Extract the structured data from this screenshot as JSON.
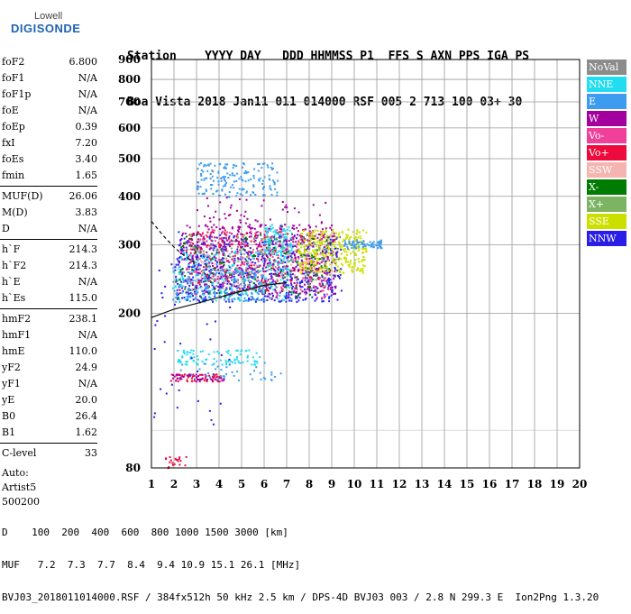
{
  "logo": {
    "line1": "Lowell",
    "line2": "DIGISONDE"
  },
  "header": {
    "labels": "Station    YYYY DAY   DDD HHMMSS P1  FFS S AXN PPS IGA PS",
    "values": "Boa Vista 2018 Jan11 011 014000 RSF 005 2 713 100 03+ 30"
  },
  "params": {
    "group1": [
      {
        "name": "foF2",
        "value": "6.800"
      },
      {
        "name": "foF1",
        "value": "N/A"
      },
      {
        "name": "foF1p",
        "value": "N/A"
      },
      {
        "name": "foE",
        "value": "N/A"
      },
      {
        "name": "foEp",
        "value": "0.39"
      },
      {
        "name": "fxI",
        "value": "7.20"
      },
      {
        "name": "foEs",
        "value": "3.40"
      },
      {
        "name": "fmin",
        "value": "1.65"
      }
    ],
    "group2": [
      {
        "name": "MUF(D)",
        "value": "26.06"
      },
      {
        "name": "M(D)",
        "value": "3.83"
      },
      {
        "name": "D",
        "value": "N/A"
      }
    ],
    "group3": [
      {
        "name": "h`F",
        "value": "214.3"
      },
      {
        "name": "h`F2",
        "value": "214.3"
      },
      {
        "name": "h`E",
        "value": "N/A"
      },
      {
        "name": "h`Es",
        "value": "115.0"
      }
    ],
    "group4": [
      {
        "name": "hmF2",
        "value": "238.1"
      },
      {
        "name": "hmF1",
        "value": "N/A"
      },
      {
        "name": "hmE",
        "value": "110.0"
      },
      {
        "name": "yF2",
        "value": "24.9"
      },
      {
        "name": "yF1",
        "value": "N/A"
      },
      {
        "name": "yE",
        "value": "20.0"
      },
      {
        "name": "B0",
        "value": "26.4"
      },
      {
        "name": "B1",
        "value": "1.62"
      }
    ],
    "group5": [
      {
        "name": "C-level",
        "value": "33"
      }
    ],
    "auto_lines": [
      "Auto:",
      "Artist5",
      "500200"
    ]
  },
  "legend": [
    {
      "label": "NoVal",
      "color": "#8c8c8c",
      "text_color": "#ffffff"
    },
    {
      "label": "NNE",
      "color": "#22dcf0",
      "text_color": "#ffffff"
    },
    {
      "label": "E",
      "color": "#3d9cf0",
      "text_color": "#ffffff"
    },
    {
      "label": "W",
      "color": "#a4009e",
      "text_color": "#ffffff"
    },
    {
      "label": "Vo-",
      "color": "#f0409a",
      "text_color": "#ffffff"
    },
    {
      "label": "Vo+",
      "color": "#ee0a3c",
      "text_color": "#ffffff"
    },
    {
      "label": "SSW",
      "color": "#f6b4b0",
      "text_color": "#ffffff"
    },
    {
      "label": "X-",
      "color": "#007c00",
      "text_color": "#ffffff"
    },
    {
      "label": "X+",
      "color": "#7cb464",
      "text_color": "#ffffff"
    },
    {
      "label": "SSE",
      "color": "#cce000",
      "text_color": "#ffffff"
    },
    {
      "label": "NNW",
      "color": "#2a1ee6",
      "text_color": "#ffffff"
    }
  ],
  "footer": {
    "line1": "D    100  200  400  600  800 1000 1500 3000 [km]",
    "line2": "MUF   7.2  7.3  7.7  8.4  9.4 10.9 15.1 26.1 [MHz]",
    "line3": "BVJ03_2018011014000.RSF / 384fx512h 50 kHz 2.5 km / DPS-4D BVJ03 003 / 2.8 N 299.3 E  Ion2Png 1.3.20"
  },
  "chart_data": {
    "type": "scatter",
    "xlim": [
      1,
      20
    ],
    "ylim": [
      80,
      900
    ],
    "y_scale": "log",
    "x_ticks": [
      1,
      2,
      3,
      4,
      5,
      6,
      7,
      8,
      9,
      10,
      11,
      12,
      13,
      14,
      15,
      16,
      17,
      18,
      19,
      20
    ],
    "y_ticks": [
      80,
      200,
      300,
      400,
      500,
      600,
      700,
      800,
      900
    ],
    "grid": true,
    "legend_position": "right",
    "trace_curve": {
      "x": [
        1.0,
        2.0,
        3.0,
        4.0,
        5.0,
        6.0,
        7.0
      ],
      "y": [
        195,
        205,
        212,
        220,
        228,
        236,
        240
      ]
    },
    "trace_curve_upper": {
      "x": [
        1.0,
        1.5,
        2.0,
        2.5,
        3.0
      ],
      "y": [
        345,
        318,
        296,
        280,
        268
      ]
    },
    "clusters": [
      {
        "series": "NNW",
        "x": [
          2.0,
          9.4
        ],
        "y": [
          215,
          320
        ],
        "n": 700
      },
      {
        "series": "W",
        "x": [
          2.2,
          9.2
        ],
        "y": [
          225,
          340
        ],
        "n": 500
      },
      {
        "series": "Vo-",
        "x": [
          2.5,
          8.8
        ],
        "y": [
          220,
          330
        ],
        "n": 260
      },
      {
        "series": "Vo+",
        "x": [
          2.5,
          8.5
        ],
        "y": [
          230,
          330
        ],
        "n": 160
      },
      {
        "series": "NNE",
        "x": [
          1.9,
          7.2
        ],
        "y": [
          215,
          290
        ],
        "n": 260
      },
      {
        "series": "NNE",
        "x": [
          6.0,
          7.2
        ],
        "y": [
          285,
          340
        ],
        "n": 90
      },
      {
        "series": "SSE",
        "x": [
          7.5,
          10.5
        ],
        "y": [
          255,
          330
        ],
        "n": 320
      },
      {
        "series": "X-",
        "x": [
          2.0,
          9.0
        ],
        "y": [
          220,
          320
        ],
        "n": 120
      },
      {
        "series": "X+",
        "x": [
          2.5,
          9.0
        ],
        "y": [
          230,
          320
        ],
        "n": 100
      },
      {
        "series": "SSW",
        "x": [
          3.0,
          8.5
        ],
        "y": [
          240,
          310
        ],
        "n": 60
      },
      {
        "series": "E",
        "x": [
          1.9,
          6.0
        ],
        "y": [
          215,
          260
        ],
        "n": 150
      },
      {
        "series": "E",
        "x": [
          3.0,
          6.6
        ],
        "y": [
          400,
          490
        ],
        "n": 170
      },
      {
        "series": "E",
        "x": [
          9.5,
          11.2
        ],
        "y": [
          295,
          310
        ],
        "n": 70
      },
      {
        "series": "NNE",
        "x": [
          2.1,
          5.8
        ],
        "y": [
          148,
          162
        ],
        "n": 90
      },
      {
        "series": "Vo+",
        "x": [
          1.8,
          4.2
        ],
        "y": [
          134,
          140
        ],
        "n": 50
      },
      {
        "series": "W",
        "x": [
          1.8,
          4.2
        ],
        "y": [
          134,
          140
        ],
        "n": 40
      },
      {
        "series": "E",
        "x": [
          2.2,
          6.8
        ],
        "y": [
          135,
          150
        ],
        "n": 40
      },
      {
        "series": "Vo+",
        "x": [
          1.5,
          2.6
        ],
        "y": [
          80,
          86
        ],
        "n": 20
      },
      {
        "series": "NNW",
        "x": [
          1.0,
          4.5
        ],
        "y": [
          95,
          330
        ],
        "n": 50
      },
      {
        "series": "W",
        "x": [
          3.0,
          9.0
        ],
        "y": [
          330,
          400
        ],
        "n": 60
      }
    ]
  }
}
